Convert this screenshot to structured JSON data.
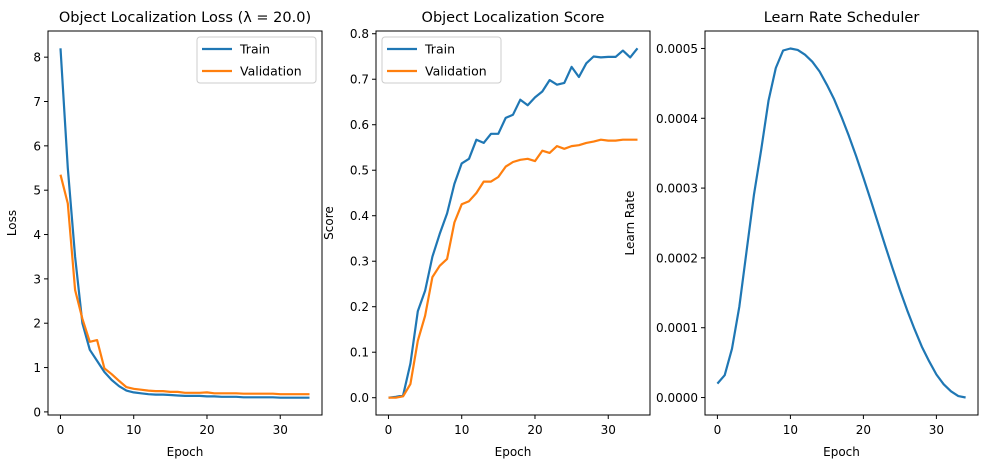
{
  "chart_data": [
    {
      "type": "line",
      "title": "Object Localization Loss (λ = 20.0)",
      "xlabel": "Epoch",
      "ylabel": "Loss",
      "xlim": [
        -1.7,
        35.7
      ],
      "ylim": [
        -0.07,
        8.59
      ],
      "xticks": [
        0,
        10,
        20,
        30
      ],
      "xtick_labels": [
        "0",
        "10",
        "20",
        "30"
      ],
      "yticks": [
        0,
        1,
        2,
        3,
        4,
        5,
        6,
        7,
        8
      ],
      "ytick_labels": [
        "0",
        "1",
        "2",
        "3",
        "4",
        "5",
        "6",
        "7",
        "8"
      ],
      "grid": false,
      "legend_placement": "upper right",
      "x": [
        0,
        1,
        2,
        3,
        4,
        5,
        6,
        7,
        8,
        9,
        10,
        11,
        12,
        13,
        14,
        15,
        16,
        17,
        18,
        19,
        20,
        21,
        22,
        23,
        24,
        25,
        26,
        27,
        28,
        29,
        30,
        31,
        32,
        33,
        34
      ],
      "series": [
        {
          "name": "Train",
          "color": "#1f77b4",
          "values": [
            8.2,
            5.5,
            3.5,
            2.0,
            1.4,
            1.15,
            0.9,
            0.72,
            0.58,
            0.48,
            0.44,
            0.42,
            0.4,
            0.39,
            0.39,
            0.38,
            0.37,
            0.36,
            0.36,
            0.36,
            0.35,
            0.35,
            0.34,
            0.34,
            0.34,
            0.33,
            0.33,
            0.33,
            0.33,
            0.33,
            0.32,
            0.32,
            0.32,
            0.32,
            0.32
          ]
        },
        {
          "name": "Validation",
          "color": "#ff7f0e",
          "values": [
            5.35,
            4.7,
            2.75,
            2.1,
            1.58,
            1.62,
            0.98,
            0.85,
            0.7,
            0.56,
            0.52,
            0.5,
            0.48,
            0.47,
            0.47,
            0.45,
            0.45,
            0.43,
            0.43,
            0.43,
            0.44,
            0.42,
            0.42,
            0.42,
            0.42,
            0.41,
            0.41,
            0.41,
            0.41,
            0.41,
            0.4,
            0.4,
            0.4,
            0.4,
            0.4
          ]
        }
      ]
    },
    {
      "type": "line",
      "title": "Object Localization Score",
      "xlabel": "Epoch",
      "ylabel": "Score",
      "xlim": [
        -1.7,
        35.7
      ],
      "ylim": [
        -0.038,
        0.806
      ],
      "xticks": [
        0,
        10,
        20,
        30
      ],
      "xtick_labels": [
        "0",
        "10",
        "20",
        "30"
      ],
      "yticks": [
        0,
        0.1,
        0.2,
        0.3,
        0.4,
        0.5,
        0.6,
        0.7,
        0.8
      ],
      "ytick_labels": [
        "0.0",
        "0.1",
        "0.2",
        "0.3",
        "0.4",
        "0.5",
        "0.6",
        "0.7",
        "0.8"
      ],
      "grid": false,
      "legend_placement": "upper left",
      "x": [
        0,
        1,
        2,
        3,
        4,
        5,
        6,
        7,
        8,
        9,
        10,
        11,
        12,
        13,
        14,
        15,
        16,
        17,
        18,
        19,
        20,
        21,
        22,
        23,
        24,
        25,
        26,
        27,
        28,
        29,
        30,
        31,
        32,
        33,
        34
      ],
      "series": [
        {
          "name": "Train",
          "color": "#1f77b4",
          "values": [
            0.0,
            0.002,
            0.005,
            0.075,
            0.19,
            0.235,
            0.31,
            0.36,
            0.405,
            0.47,
            0.515,
            0.525,
            0.567,
            0.56,
            0.58,
            0.58,
            0.615,
            0.622,
            0.655,
            0.643,
            0.66,
            0.673,
            0.698,
            0.688,
            0.692,
            0.727,
            0.705,
            0.735,
            0.75,
            0.748,
            0.749,
            0.749,
            0.763,
            0.748,
            0.768
          ]
        },
        {
          "name": "Validation",
          "color": "#ff7f0e",
          "values": [
            0.0,
            0.0,
            0.003,
            0.03,
            0.125,
            0.18,
            0.265,
            0.29,
            0.305,
            0.385,
            0.425,
            0.432,
            0.45,
            0.475,
            0.475,
            0.485,
            0.508,
            0.518,
            0.523,
            0.525,
            0.52,
            0.543,
            0.538,
            0.553,
            0.547,
            0.553,
            0.555,
            0.56,
            0.563,
            0.567,
            0.565,
            0.565,
            0.567,
            0.567,
            0.567
          ]
        }
      ]
    },
    {
      "type": "line",
      "title": "Learn Rate Scheduler",
      "xlabel": "Epoch",
      "ylabel": "Learn Rate",
      "xlim": [
        -1.7,
        35.7
      ],
      "ylim": [
        -2.5e-05,
        0.000525
      ],
      "xticks": [
        0,
        10,
        20,
        30
      ],
      "xtick_labels": [
        "0",
        "10",
        "20",
        "30"
      ],
      "yticks": [
        0,
        0.0001,
        0.0002,
        0.0003,
        0.0004,
        0.0005
      ],
      "ytick_labels": [
        "0.0000",
        "0.0001",
        "0.0002",
        "0.0003",
        "0.0004",
        "0.0005"
      ],
      "grid": false,
      "x": [
        0,
        1,
        2,
        3,
        4,
        5,
        6,
        7,
        8,
        9,
        10,
        11,
        12,
        13,
        14,
        15,
        16,
        17,
        18,
        19,
        20,
        21,
        22,
        23,
        24,
        25,
        26,
        27,
        28,
        29,
        30,
        31,
        32,
        33,
        34
      ],
      "series": [
        {
          "color": "#1f77b4",
          "values": [
            2e-05,
            3.2e-05,
            7e-05,
            0.00013,
            0.00021,
            0.00029,
            0.000355,
            0.000425,
            0.000472,
            0.000497,
            0.0005,
            0.000498,
            0.000491,
            0.000481,
            0.000467,
            0.000448,
            0.000427,
            0.000402,
            0.000375,
            0.000346,
            0.000315,
            0.000283,
            0.00025,
            0.000217,
            0.000185,
            0.000154,
            0.000125,
            9.8e-05,
            7.3e-05,
            5.2e-05,
            3.3e-05,
            1.9e-05,
            9e-06,
            2e-06,
            0.0
          ]
        }
      ]
    }
  ]
}
